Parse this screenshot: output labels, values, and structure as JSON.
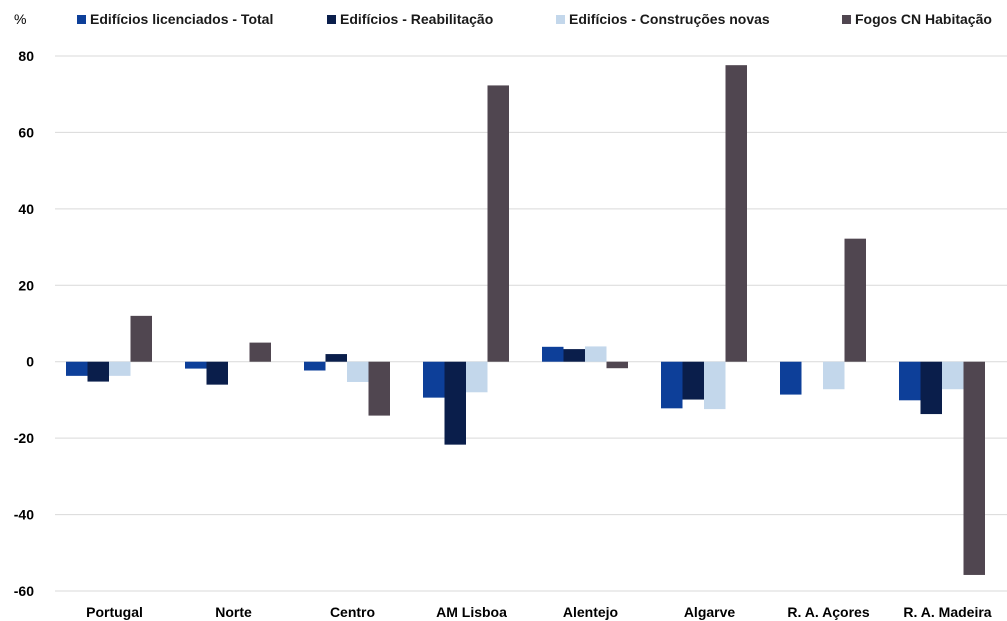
{
  "chart_data": {
    "type": "bar",
    "title": "",
    "xlabel": "",
    "ylabel": "%",
    "ylim": [
      -60,
      80
    ],
    "yticks": [
      80,
      60,
      40,
      20,
      0,
      -20,
      -40,
      -60
    ],
    "grid": true,
    "legend_position": "top",
    "categories": [
      "Portugal",
      "Norte",
      "Centro",
      "AM Lisboa",
      "Alentejo",
      "Algarve",
      "R. A. Açores",
      "R. A. Madeira"
    ],
    "series": [
      {
        "name": "Edifícios licenciados - Total",
        "color": "#0d3f99",
        "values": [
          -3.7,
          -1.8,
          -2.3,
          -9.4,
          3.9,
          -12.2,
          -8.6,
          -10.1
        ]
      },
      {
        "name": "Edifícios - Reabilitação",
        "color": "#0a1e4b",
        "values": [
          -5.2,
          -6.0,
          2.0,
          -21.7,
          3.3,
          -9.9,
          0,
          -13.7
        ]
      },
      {
        "name": "Edifícios - Construções novas",
        "color": "#c3d7eb",
        "values": [
          -3.7,
          0,
          -5.3,
          -8.0,
          4.0,
          -12.4,
          -7.2,
          -7.2
        ]
      },
      {
        "name": "Fogos CN Habitação",
        "color": "#504650",
        "values": [
          12.0,
          5.0,
          -14.1,
          72.3,
          -1.7,
          77.6,
          32.2,
          -55.8
        ]
      }
    ]
  }
}
